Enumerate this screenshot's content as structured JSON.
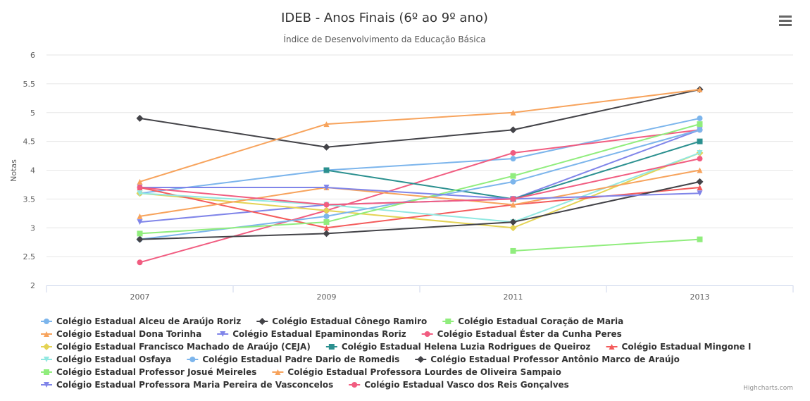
{
  "chart_data": {
    "type": "line",
    "title": "IDEB - Anos Finais (6º ao 9º ano)",
    "subtitle": "Índice de Desenvolvimento da Educação Básica",
    "ylabel": "Notas",
    "xlabel": "",
    "categories": [
      "2007",
      "2009",
      "2011",
      "2013"
    ],
    "ylim": [
      2,
      6
    ],
    "yticks": [
      2,
      2.5,
      3,
      3.5,
      4,
      4.5,
      5,
      5.5,
      6
    ],
    "grid": true,
    "legend_position": "bottom",
    "series": [
      {
        "name": "Colégio Estadual Alceu de Araújo Roriz",
        "values": [
          3.6,
          4.0,
          4.2,
          4.9
        ],
        "color": "#7cb5ec",
        "marker": "circle"
      },
      {
        "name": "Colégio Estadual Cônego Ramiro",
        "values": [
          4.9,
          4.4,
          4.7,
          5.4
        ],
        "color": "#434348",
        "marker": "diamond"
      },
      {
        "name": "Colégio Estadual Coração de Maria",
        "values": [
          null,
          null,
          2.6,
          2.8
        ],
        "color": "#90ed7d",
        "marker": "square"
      },
      {
        "name": "Colégio Estadual Dona Torinha",
        "values": [
          3.8,
          4.8,
          5.0,
          5.4
        ],
        "color": "#f7a35c",
        "marker": "triangle"
      },
      {
        "name": "Colégio Estadual Epaminondas Roriz",
        "values": [
          3.1,
          3.4,
          3.5,
          4.7
        ],
        "color": "#8085e9",
        "marker": "triangle-down"
      },
      {
        "name": "Colégio Estadual Éster da Cunha Peres",
        "values": [
          2.4,
          3.3,
          4.3,
          4.7
        ],
        "color": "#f15c80",
        "marker": "circle"
      },
      {
        "name": "Colégio Estadual Francisco Machado de Araújo (CEJA)",
        "values": [
          3.6,
          3.3,
          3.0,
          4.3
        ],
        "color": "#e4d354",
        "marker": "diamond"
      },
      {
        "name": "Colégio Estadual Helena Luzia Rodrigues de Queiroz",
        "values": [
          null,
          4.0,
          3.5,
          4.5
        ],
        "color": "#2b908f",
        "marker": "square"
      },
      {
        "name": "Colégio Estadual Mingone I",
        "values": [
          3.7,
          3.0,
          3.4,
          3.7
        ],
        "color": "#f45b5b",
        "marker": "triangle"
      },
      {
        "name": "Colégio Estadual Osfaya",
        "values": [
          3.6,
          3.4,
          3.1,
          4.3
        ],
        "color": "#91e8e1",
        "marker": "triangle-down"
      },
      {
        "name": "Colégio Estadual Padre Dario de Romedis",
        "values": [
          2.8,
          3.2,
          3.8,
          4.7
        ],
        "color": "#7cb5ec",
        "marker": "circle"
      },
      {
        "name": "Colégio Estadual Professor Antônio Marco de Araújo",
        "values": [
          2.8,
          2.9,
          3.1,
          3.8
        ],
        "color": "#434348",
        "marker": "diamond"
      },
      {
        "name": "Colégio Estadual Professor Josué Meireles",
        "values": [
          2.9,
          3.1,
          3.9,
          4.8
        ],
        "color": "#90ed7d",
        "marker": "square"
      },
      {
        "name": "Colégio Estadual Professora Lourdes de Oliveira Sampaio",
        "values": [
          3.2,
          3.7,
          3.4,
          4.0
        ],
        "color": "#f7a35c",
        "marker": "triangle"
      },
      {
        "name": "Colégio Estadual Professora Maria Pereira de Vasconcelos",
        "values": [
          3.7,
          3.7,
          3.5,
          3.6
        ],
        "color": "#8085e9",
        "marker": "triangle-down"
      },
      {
        "name": "Colégio Estadual Vasco dos Reis Gonçalves",
        "values": [
          3.7,
          3.4,
          3.5,
          4.2
        ],
        "color": "#f15c80",
        "marker": "circle"
      }
    ]
  },
  "credits": "Highcharts.com",
  "menu_icon": "hamburger-menu-icon"
}
